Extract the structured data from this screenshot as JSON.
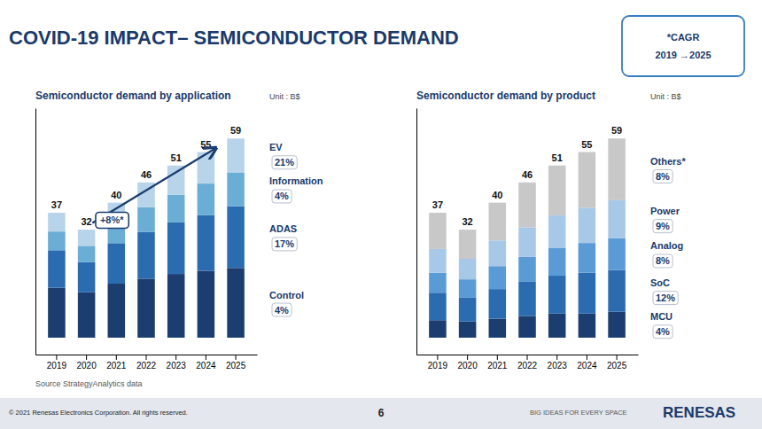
{
  "chart_data": [
    {
      "type": "bar",
      "stacked": true,
      "title": "COVID-19 IMPACT– SEMICONDUCTOR DEMAND",
      "subtitle": "Semiconductor demand by application",
      "ylabel": "Unit : B$",
      "categories": [
        "2019",
        "2020",
        "2021",
        "2022",
        "2023",
        "2024",
        "2025"
      ],
      "series": [
        {
          "name": "Control",
          "color": "#1b3d6f",
          "values": [
            14.8,
            13.44,
            16,
            17.48,
            18.87,
            19.8,
            20.65
          ],
          "growth_label": "4%"
        },
        {
          "name": "ADAS",
          "color": "#2b6cb0",
          "values": [
            11.1,
            8.96,
            12,
            13.8,
            15.3,
            16.5,
            18.29
          ],
          "growth_label": "17%"
        },
        {
          "name": "Information",
          "color": "#6aadd5",
          "values": [
            5.55,
            4.8,
            6,
            7.36,
            8.16,
            9.35,
            10.03
          ],
          "growth_label": "4%"
        },
        {
          "name": "EV",
          "color": "#b8d4ea",
          "values": [
            5.55,
            4.8,
            6,
            7.36,
            8.67,
            9.35,
            10.03
          ],
          "growth_label": "21%"
        }
      ],
      "totals": [
        37,
        32,
        40,
        46,
        51,
        55,
        59
      ],
      "ylim": [
        -5,
        68
      ],
      "tick_labels": "x",
      "annotations": [
        "+8%*",
        "*CAGR",
        "2019 →2025",
        "Source StrategyAnalytics data",
        "© 2021 Renesas Electronics Corporation. All rights reserved.",
        "6",
        "BIG IDEAS FOR EVERY SPACE",
        "RENESAS"
      ]
    },
    {
      "type": "bar",
      "stacked": true,
      "subtitle": "Semiconductor demand by product",
      "ylabel": "Unit : B$",
      "categories": [
        "2019",
        "2020",
        "2021",
        "2022",
        "2023",
        "2024",
        "2025"
      ],
      "series": [
        {
          "name": "MCU",
          "color": "#1b3d6f",
          "values": [
            5.18,
            4.8,
            5.6,
            6.44,
            7.14,
            7.15,
            7.67
          ],
          "growth_label": "4%"
        },
        {
          "name": "SoC",
          "color": "#2b6cb0",
          "values": [
            8.14,
            7.04,
            8.8,
            10.12,
            11.22,
            12.1,
            12.39
          ],
          "growth_label": "12%"
        },
        {
          "name": "Analog",
          "color": "#5b9bd5",
          "values": [
            5.92,
            5.44,
            6.8,
            7.36,
            8.16,
            8.8,
            9.44
          ],
          "growth_label": "8%"
        },
        {
          "name": "Power",
          "color": "#a8c8e8",
          "values": [
            7.03,
            6.08,
            7.6,
            8.74,
            9.69,
            10.45,
            11.21
          ],
          "growth_label": "9%"
        },
        {
          "name": "Others*",
          "color": "#c8c8c8",
          "values": [
            10.73,
            8.64,
            11.2,
            13.34,
            14.79,
            16.5,
            18.29
          ],
          "growth_label": "8%"
        }
      ],
      "totals": [
        37,
        32,
        40,
        46,
        51,
        55,
        59
      ],
      "ylim": [
        -5,
        68
      ],
      "tick_labels": "x"
    }
  ]
}
